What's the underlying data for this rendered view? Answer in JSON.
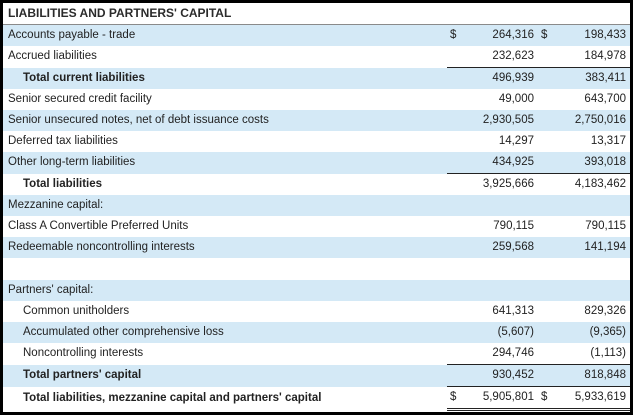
{
  "title": "LIABILITIES AND PARTNERS' CAPITAL",
  "currency_symbol": "$",
  "rows": [
    {
      "label": "Accounts payable - trade",
      "c1": "264,316",
      "c2": "198,433"
    },
    {
      "label": "Accrued liabilities",
      "c1": "232,623",
      "c2": "184,978"
    },
    {
      "label": "Total current liabilities",
      "c1": "496,939",
      "c2": "383,411"
    },
    {
      "label": "Senior secured credit facility",
      "c1": "49,000",
      "c2": "643,700"
    },
    {
      "label": "Senior unsecured notes, net of debt issuance costs",
      "c1": "2,930,505",
      "c2": "2,750,016"
    },
    {
      "label": "Deferred tax liabilities",
      "c1": "14,297",
      "c2": "13,317"
    },
    {
      "label": "Other long-term liabilities",
      "c1": "434,925",
      "c2": "393,018"
    },
    {
      "label": "Total liabilities",
      "c1": "3,925,666",
      "c2": "4,183,462"
    },
    {
      "label": "Mezzanine capital:",
      "c1": "",
      "c2": ""
    },
    {
      "label": "Class A Convertible Preferred Units",
      "c1": "790,115",
      "c2": "790,115"
    },
    {
      "label": "Redeemable noncontrolling interests",
      "c1": "259,568",
      "c2": "141,194"
    },
    {
      "label": "",
      "c1": "",
      "c2": ""
    },
    {
      "label": "Partners' capital:",
      "c1": "",
      "c2": ""
    },
    {
      "label": "Common unitholders",
      "c1": "641,313",
      "c2": "829,326"
    },
    {
      "label": "Accumulated other comprehensive loss",
      "c1": "(5,607)",
      "c2": "(9,365)"
    },
    {
      "label": "Noncontrolling interests",
      "c1": "294,746",
      "c2": "(1,113)"
    },
    {
      "label": "Total partners' capital",
      "c1": "930,452",
      "c2": "818,848"
    },
    {
      "label": "Total liabilities, mezzanine capital and partners' capital",
      "c1": "5,905,801",
      "c2": "5,933,619"
    }
  ]
}
